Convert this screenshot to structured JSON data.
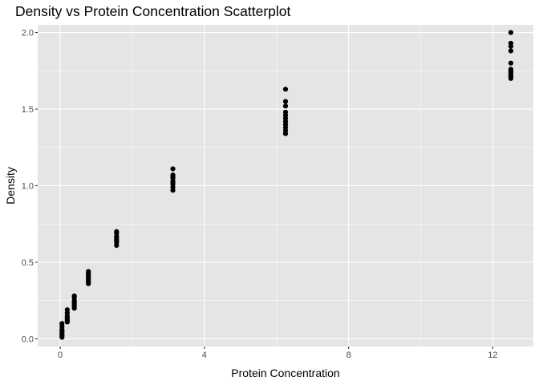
{
  "chart_data": {
    "type": "scatter",
    "title": "Density vs Protein Concentration Scatterplot",
    "xlabel": "Protein Concentration",
    "ylabel": "Density",
    "xlim": [
      -0.625,
      13.125
    ],
    "ylim": [
      -0.05,
      2.05
    ],
    "x_ticks": [
      0,
      4,
      8,
      12
    ],
    "y_ticks": [
      0.0,
      0.5,
      1.0,
      1.5,
      2.0
    ],
    "x_tick_labels": [
      "0",
      "4",
      "8",
      "12"
    ],
    "y_tick_labels": [
      "0.0",
      "0.5",
      "1.0",
      "1.5",
      "2.0"
    ],
    "grid": true,
    "theme": "ggplot2 grey",
    "point_color": "#000000",
    "panel_color": "#e5e5e5",
    "grid_color": "#ffffff",
    "points": [
      {
        "x": 0.049,
        "y": 0.01
      },
      {
        "x": 0.049,
        "y": 0.02
      },
      {
        "x": 0.049,
        "y": 0.03
      },
      {
        "x": 0.049,
        "y": 0.04
      },
      {
        "x": 0.049,
        "y": 0.05
      },
      {
        "x": 0.049,
        "y": 0.06
      },
      {
        "x": 0.049,
        "y": 0.08
      },
      {
        "x": 0.049,
        "y": 0.1
      },
      {
        "x": 0.195,
        "y": 0.11
      },
      {
        "x": 0.195,
        "y": 0.12
      },
      {
        "x": 0.195,
        "y": 0.13
      },
      {
        "x": 0.195,
        "y": 0.14
      },
      {
        "x": 0.195,
        "y": 0.15
      },
      {
        "x": 0.195,
        "y": 0.17
      },
      {
        "x": 0.195,
        "y": 0.19
      },
      {
        "x": 0.391,
        "y": 0.2
      },
      {
        "x": 0.391,
        "y": 0.21
      },
      {
        "x": 0.391,
        "y": 0.22
      },
      {
        "x": 0.391,
        "y": 0.23
      },
      {
        "x": 0.391,
        "y": 0.24
      },
      {
        "x": 0.391,
        "y": 0.25
      },
      {
        "x": 0.391,
        "y": 0.27
      },
      {
        "x": 0.391,
        "y": 0.28
      },
      {
        "x": 0.781,
        "y": 0.36
      },
      {
        "x": 0.781,
        "y": 0.37
      },
      {
        "x": 0.781,
        "y": 0.38
      },
      {
        "x": 0.781,
        "y": 0.39
      },
      {
        "x": 0.781,
        "y": 0.4
      },
      {
        "x": 0.781,
        "y": 0.41
      },
      {
        "x": 0.781,
        "y": 0.42
      },
      {
        "x": 0.781,
        "y": 0.43
      },
      {
        "x": 0.781,
        "y": 0.44
      },
      {
        "x": 1.5625,
        "y": 0.61
      },
      {
        "x": 1.5625,
        "y": 0.63
      },
      {
        "x": 1.5625,
        "y": 0.64
      },
      {
        "x": 1.5625,
        "y": 0.65
      },
      {
        "x": 1.5625,
        "y": 0.66
      },
      {
        "x": 1.5625,
        "y": 0.67
      },
      {
        "x": 1.5625,
        "y": 0.69
      },
      {
        "x": 1.5625,
        "y": 0.7
      },
      {
        "x": 3.125,
        "y": 0.97
      },
      {
        "x": 3.125,
        "y": 0.99
      },
      {
        "x": 3.125,
        "y": 1.01
      },
      {
        "x": 3.125,
        "y": 1.02
      },
      {
        "x": 3.125,
        "y": 1.03
      },
      {
        "x": 3.125,
        "y": 1.05
      },
      {
        "x": 3.125,
        "y": 1.06
      },
      {
        "x": 3.125,
        "y": 1.07
      },
      {
        "x": 3.125,
        "y": 1.11
      },
      {
        "x": 6.25,
        "y": 1.34
      },
      {
        "x": 6.25,
        "y": 1.36
      },
      {
        "x": 6.25,
        "y": 1.38
      },
      {
        "x": 6.25,
        "y": 1.4
      },
      {
        "x": 6.25,
        "y": 1.42
      },
      {
        "x": 6.25,
        "y": 1.44
      },
      {
        "x": 6.25,
        "y": 1.46
      },
      {
        "x": 6.25,
        "y": 1.48
      },
      {
        "x": 6.25,
        "y": 1.52
      },
      {
        "x": 6.25,
        "y": 1.55
      },
      {
        "x": 6.25,
        "y": 1.63
      },
      {
        "x": 12.5,
        "y": 1.7
      },
      {
        "x": 12.5,
        "y": 1.71
      },
      {
        "x": 12.5,
        "y": 1.72
      },
      {
        "x": 12.5,
        "y": 1.73
      },
      {
        "x": 12.5,
        "y": 1.74
      },
      {
        "x": 12.5,
        "y": 1.75
      },
      {
        "x": 12.5,
        "y": 1.76
      },
      {
        "x": 12.5,
        "y": 1.8
      },
      {
        "x": 12.5,
        "y": 1.88
      },
      {
        "x": 12.5,
        "y": 1.91
      },
      {
        "x": 12.5,
        "y": 1.93
      },
      {
        "x": 12.5,
        "y": 2.0
      }
    ]
  }
}
